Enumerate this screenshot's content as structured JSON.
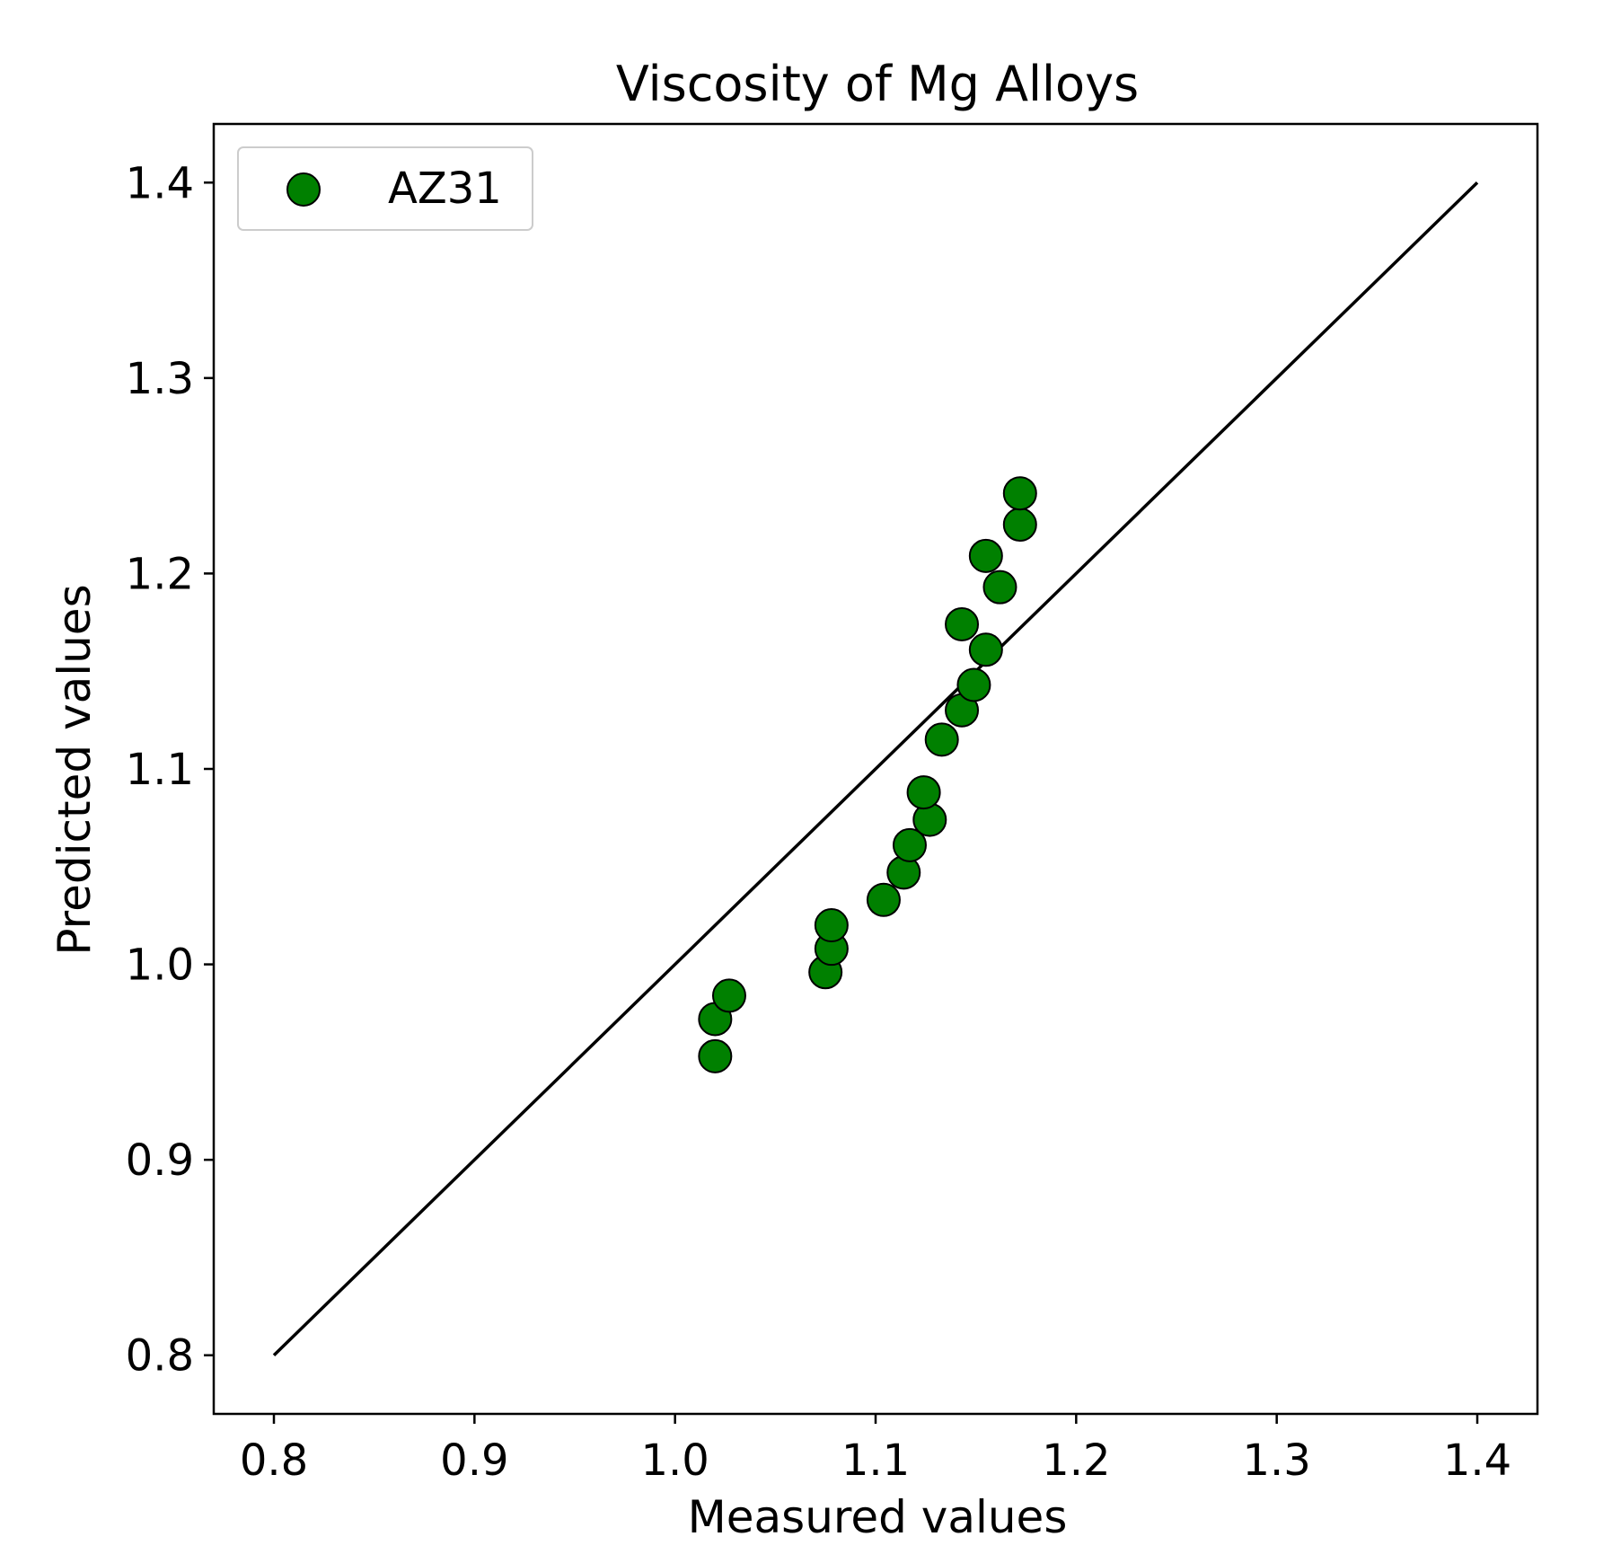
{
  "chart_data": {
    "type": "scatter",
    "title": "Viscosity of Mg Alloys",
    "xlabel": "Measured values",
    "ylabel": "Predicted values",
    "xlim": [
      0.77,
      1.43
    ],
    "ylim": [
      0.77,
      1.43
    ],
    "xticks": [
      0.8,
      0.9,
      1.0,
      1.1,
      1.2,
      1.3,
      1.4
    ],
    "yticks": [
      0.8,
      0.9,
      1.0,
      1.1,
      1.2,
      1.3,
      1.4
    ],
    "xtick_labels": [
      "0.8",
      "0.9",
      "1.0",
      "1.1",
      "1.2",
      "1.3",
      "1.4"
    ],
    "ytick_labels": [
      "0.8",
      "0.9",
      "1.0",
      "1.1",
      "1.2",
      "1.3",
      "1.4"
    ],
    "grid": false,
    "legend_position": "top-left",
    "reference_line": {
      "x": [
        0.8,
        1.4
      ],
      "y": [
        0.8,
        1.4
      ],
      "color": "#000000"
    },
    "series": [
      {
        "name": "AZ31",
        "color": "#008000",
        "edge_color": "#000000",
        "marker": "circle",
        "points": [
          {
            "x": 1.02,
            "y": 0.953
          },
          {
            "x": 1.02,
            "y": 0.972
          },
          {
            "x": 1.027,
            "y": 0.984
          },
          {
            "x": 1.075,
            "y": 0.996
          },
          {
            "x": 1.078,
            "y": 1.008
          },
          {
            "x": 1.078,
            "y": 1.02
          },
          {
            "x": 1.104,
            "y": 1.033
          },
          {
            "x": 1.114,
            "y": 1.047
          },
          {
            "x": 1.117,
            "y": 1.061
          },
          {
            "x": 1.127,
            "y": 1.074
          },
          {
            "x": 1.124,
            "y": 1.088
          },
          {
            "x": 1.133,
            "y": 1.115
          },
          {
            "x": 1.143,
            "y": 1.13
          },
          {
            "x": 1.149,
            "y": 1.143
          },
          {
            "x": 1.155,
            "y": 1.161
          },
          {
            "x": 1.143,
            "y": 1.174
          },
          {
            "x": 1.162,
            "y": 1.193
          },
          {
            "x": 1.155,
            "y": 1.209
          },
          {
            "x": 1.172,
            "y": 1.225
          },
          {
            "x": 1.172,
            "y": 1.241
          }
        ]
      }
    ]
  }
}
